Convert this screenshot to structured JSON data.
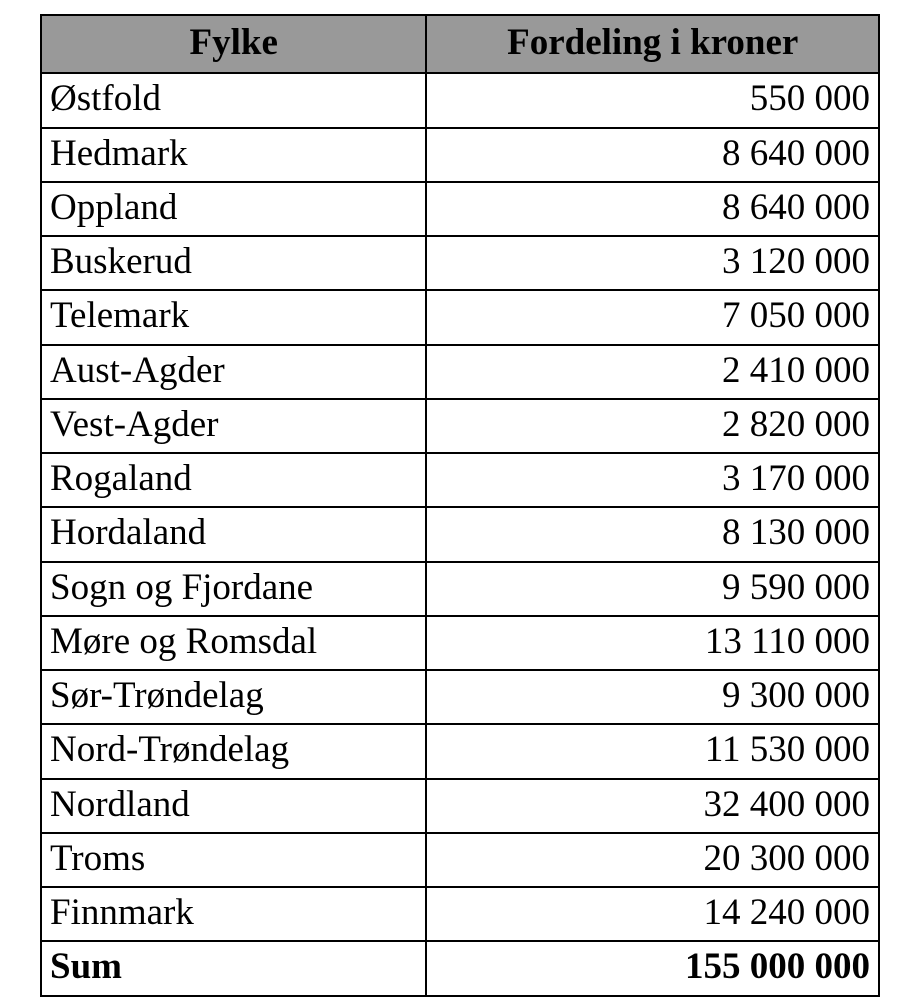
{
  "table": {
    "type": "table",
    "background_color": "#ffffff",
    "border_color": "#000000",
    "header_background": "#999999",
    "text_color": "#000000",
    "font_family": "Times New Roman",
    "header_font_weight": "bold",
    "sum_font_weight": "bold",
    "cell_fontsize_pt": 28,
    "columns": [
      {
        "label": "Fylke",
        "align": "center",
        "data_align": "left",
        "width_pct": 46
      },
      {
        "label": "Fordeling i kroner",
        "align": "center",
        "data_align": "right",
        "width_pct": 54
      }
    ],
    "rows": [
      {
        "name": "Østfold",
        "value": "550 000"
      },
      {
        "name": "Hedmark",
        "value": "8 640 000"
      },
      {
        "name": "Oppland",
        "value": "8 640 000"
      },
      {
        "name": "Buskerud",
        "value": "3 120 000"
      },
      {
        "name": "Telemark",
        "value": "7 050 000"
      },
      {
        "name": "Aust-Agder",
        "value": "2 410 000"
      },
      {
        "name": "Vest-Agder",
        "value": "2 820 000"
      },
      {
        "name": "Rogaland",
        "value": "3 170 000"
      },
      {
        "name": "Hordaland",
        "value": "8 130 000"
      },
      {
        "name": "Sogn og Fjordane",
        "value": "9 590 000"
      },
      {
        "name": "Møre og Romsdal",
        "value": "13 110 000"
      },
      {
        "name": "Sør-Trøndelag",
        "value": "9 300 000"
      },
      {
        "name": "Nord-Trøndelag",
        "value": "11 530 000"
      },
      {
        "name": "Nordland",
        "value": "32 400 000"
      },
      {
        "name": "Troms",
        "value": "20 300 000"
      },
      {
        "name": "Finnmark",
        "value": "14 240 000"
      }
    ],
    "sum": {
      "name": "Sum",
      "value": "155 000 000"
    }
  }
}
